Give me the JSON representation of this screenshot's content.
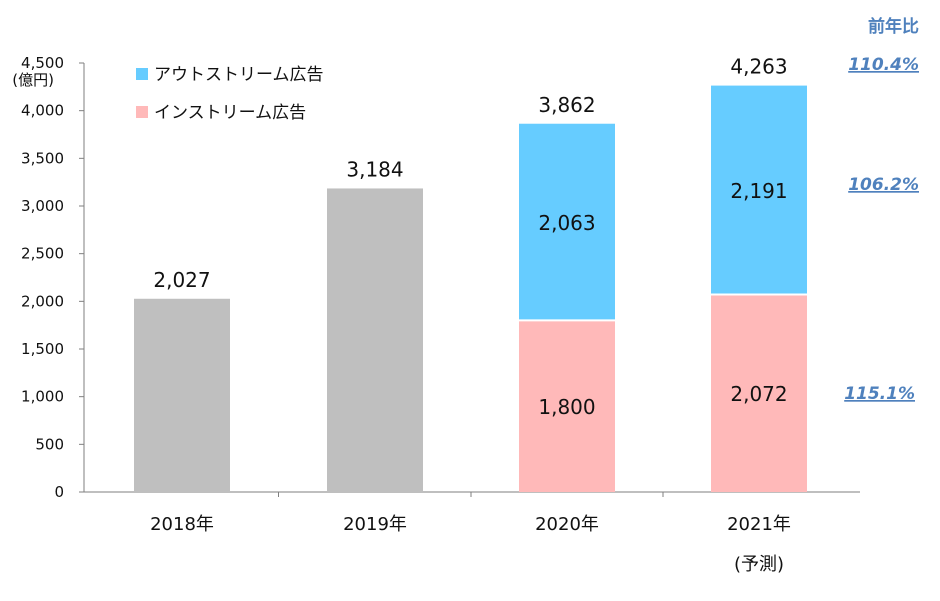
{
  "chart_data": {
    "type": "bar",
    "stacked": true,
    "categories": [
      "2018年",
      "2019年",
      "2020年",
      "2021年"
    ],
    "category_notes": [
      "",
      "",
      "",
      "(予測)"
    ],
    "ylim": [
      0,
      4500
    ],
    "yticks": [
      0,
      500,
      1000,
      1500,
      2000,
      2500,
      3000,
      3500,
      4000,
      4500
    ],
    "ytick_labels": [
      "0",
      "500",
      "1,000",
      "1,500",
      "2,000",
      "2,500",
      "3,000",
      "3,500",
      "4,000",
      "4,500"
    ],
    "yunit": "(億円)",
    "totals": [
      {
        "value": 2027,
        "label": "2,027"
      },
      {
        "value": 3184,
        "label": "3,184"
      },
      {
        "value": 3862,
        "label": "3,862"
      },
      {
        "value": 4263,
        "label": "4,263"
      }
    ],
    "total_bar_color": "#bfbfbf",
    "series": [
      {
        "name": "インストリーム広告",
        "color": "#ffb9b9",
        "values": [
          null,
          null,
          1800,
          2072
        ],
        "labels": [
          "",
          "",
          "1,800",
          "2,072"
        ]
      },
      {
        "name": "アウトストリーム広告",
        "color": "#66ccff",
        "values": [
          null,
          null,
          2063,
          2191
        ],
        "labels": [
          "",
          "",
          "2,063",
          "2,191"
        ]
      }
    ],
    "legend": [
      {
        "name": "アウトストリーム広告",
        "color": "#66ccff"
      },
      {
        "name": "インストリーム広告",
        "color": "#ffb9b9"
      }
    ],
    "legend_position": "top-left",
    "yoy": {
      "title": "前年比",
      "total": "110.4%",
      "outstream": "106.2%",
      "instream": "115.1%",
      "color": "#4f81bd"
    }
  }
}
